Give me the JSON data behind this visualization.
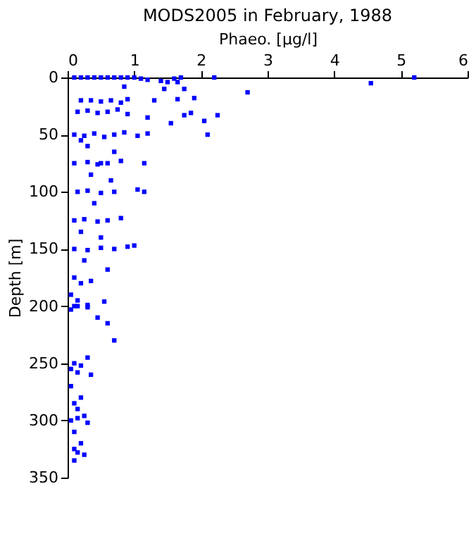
{
  "chart_data": {
    "type": "scatter",
    "title": "MODS2005 in February, 1988",
    "xlabel": "Phaeo. [µg/l]",
    "ylabel": "Depth [m]",
    "xlim": [
      0,
      6
    ],
    "xticks": [
      0,
      1,
      2,
      3,
      4,
      5,
      6
    ],
    "ylim": [
      350,
      0
    ],
    "yticks": [
      0,
      50,
      100,
      150,
      200,
      250,
      300,
      350
    ],
    "grid": false,
    "marker": "square",
    "series": [
      {
        "color": "#0000ff",
        "x": [
          0.1,
          0.2,
          0.3,
          0.4,
          0.5,
          0.6,
          0.7,
          0.8,
          0.9,
          1.0,
          1.1,
          1.2,
          1.4,
          1.6,
          1.7,
          2.2,
          5.2,
          4.55,
          1.5,
          1.65,
          0.85,
          1.45,
          1.75,
          2.7,
          0.2,
          0.35,
          0.5,
          0.65,
          0.8,
          0.9,
          1.3,
          1.65,
          1.9,
          0.15,
          0.3,
          0.45,
          0.6,
          0.75,
          0.9,
          1.2,
          1.75,
          1.85,
          2.25,
          1.55,
          2.05,
          0.3,
          0.7,
          0.1,
          0.25,
          0.4,
          0.55,
          0.7,
          0.85,
          1.05,
          1.2,
          2.1,
          0.2,
          0.5,
          0.1,
          0.3,
          0.45,
          0.6,
          0.8,
          1.15,
          0.35,
          0.65,
          0.15,
          0.3,
          0.5,
          0.7,
          1.05,
          1.15,
          0.4,
          0.1,
          0.25,
          0.45,
          0.6,
          0.8,
          0.2,
          0.5,
          0.1,
          0.3,
          0.5,
          0.7,
          0.9,
          1.0,
          0.25,
          0.6,
          0.1,
          0.2,
          0.35,
          0.05,
          0.15,
          0.55,
          0.1,
          0.3,
          0.05,
          0.15,
          0.3,
          0.45,
          0.6,
          0.7,
          0.3,
          0.1,
          0.2,
          0.05,
          0.15,
          0.35,
          0.05,
          0.2,
          0.1,
          0.15,
          0.25,
          0.05,
          0.15,
          0.3,
          0.1,
          0.2,
          0.1,
          0.15,
          0.25,
          0.1
        ],
        "values": [
          0,
          0,
          0,
          0,
          0,
          0,
          0,
          0,
          0,
          0,
          1,
          2,
          3,
          1,
          0,
          0,
          0,
          5,
          4,
          4,
          8,
          10,
          10,
          13,
          20,
          20,
          21,
          20,
          22,
          19,
          20,
          19,
          18,
          30,
          29,
          31,
          30,
          28,
          32,
          35,
          33,
          31,
          33,
          40,
          38,
          60,
          65,
          50,
          51,
          49,
          52,
          50,
          48,
          51,
          49,
          50,
          55,
          75,
          75,
          74,
          76,
          75,
          73,
          75,
          85,
          90,
          100,
          99,
          101,
          100,
          98,
          100,
          110,
          125,
          124,
          126,
          125,
          123,
          135,
          140,
          150,
          151,
          149,
          150,
          148,
          147,
          160,
          168,
          175,
          180,
          178,
          190,
          195,
          196,
          200,
          201,
          203,
          200,
          199,
          210,
          215,
          230,
          245,
          250,
          252,
          255,
          258,
          260,
          270,
          280,
          285,
          290,
          296,
          300,
          298,
          302,
          310,
          320,
          325,
          328,
          330,
          335
        ]
      }
    ]
  }
}
